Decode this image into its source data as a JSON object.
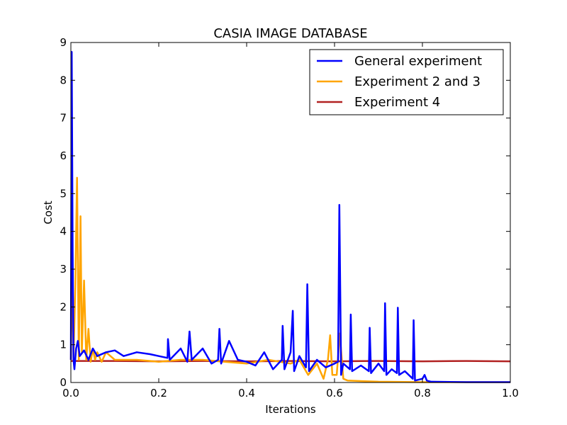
{
  "chart_data": {
    "type": "line",
    "title": "CASIA IMAGE DATABASE",
    "xlabel": "Iterations",
    "ylabel": "Cost",
    "xlim": [
      0,
      1.0
    ],
    "ylim": [
      0,
      9
    ],
    "xticks": [
      "0.0",
      "0.2",
      "0.4",
      "0.6",
      "0.8",
      "1.0"
    ],
    "xtick_values": [
      0,
      0.2,
      0.4,
      0.6,
      0.8,
      1.0
    ],
    "yticks": [
      "0",
      "1",
      "2",
      "3",
      "4",
      "5",
      "6",
      "7",
      "8",
      "9"
    ],
    "ytick_values": [
      0,
      1,
      2,
      3,
      4,
      5,
      6,
      7,
      8,
      9
    ],
    "grid": false,
    "legend_position": "top-right",
    "series": [
      {
        "name": "General experiment",
        "color": "#0000ff",
        "x": [
          0,
          0.002,
          0.004,
          0.006,
          0.008,
          0.012,
          0.016,
          0.02,
          0.03,
          0.04,
          0.05,
          0.06,
          0.08,
          0.1,
          0.12,
          0.15,
          0.18,
          0.2,
          0.22,
          0.221,
          0.225,
          0.25,
          0.265,
          0.27,
          0.275,
          0.3,
          0.32,
          0.335,
          0.338,
          0.342,
          0.36,
          0.38,
          0.4,
          0.42,
          0.44,
          0.46,
          0.48,
          0.482,
          0.486,
          0.5,
          0.505,
          0.508,
          0.52,
          0.535,
          0.538,
          0.542,
          0.56,
          0.58,
          0.6,
          0.608,
          0.611,
          0.615,
          0.62,
          0.635,
          0.637,
          0.64,
          0.66,
          0.678,
          0.68,
          0.683,
          0.7,
          0.713,
          0.715,
          0.718,
          0.73,
          0.742,
          0.744,
          0.747,
          0.76,
          0.778,
          0.78,
          0.783,
          0.8,
          0.805,
          0.81,
          0.82,
          0.9,
          1.0
        ],
        "y": [
          0.6,
          8.75,
          3.5,
          0.6,
          0.35,
          0.9,
          1.1,
          0.7,
          0.85,
          0.6,
          0.9,
          0.7,
          0.8,
          0.85,
          0.7,
          0.8,
          0.75,
          0.7,
          0.65,
          1.15,
          0.6,
          0.9,
          0.55,
          1.35,
          0.6,
          0.9,
          0.5,
          0.6,
          1.42,
          0.5,
          1.1,
          0.6,
          0.55,
          0.45,
          0.8,
          0.35,
          0.6,
          1.5,
          0.35,
          0.8,
          1.9,
          0.3,
          0.7,
          0.4,
          2.6,
          0.3,
          0.6,
          0.4,
          0.5,
          0.55,
          4.7,
          0.2,
          0.5,
          0.35,
          1.8,
          0.3,
          0.45,
          0.3,
          1.45,
          0.25,
          0.5,
          0.3,
          2.1,
          0.2,
          0.35,
          0.25,
          1.98,
          0.2,
          0.3,
          0.1,
          1.65,
          0.05,
          0.1,
          0.2,
          0.05,
          0.02,
          0.01,
          0.01
        ]
      },
      {
        "name": "Experiment 2 and 3",
        "color": "#ffa500",
        "x": [
          0,
          0.003,
          0.006,
          0.01,
          0.014,
          0.018,
          0.022,
          0.025,
          0.03,
          0.035,
          0.04,
          0.045,
          0.05,
          0.055,
          0.06,
          0.07,
          0.08,
          0.1,
          0.15,
          0.2,
          0.25,
          0.3,
          0.35,
          0.4,
          0.45,
          0.5,
          0.52,
          0.54,
          0.56,
          0.575,
          0.585,
          0.59,
          0.595,
          0.605,
          0.612,
          0.62,
          0.63,
          0.7,
          0.8,
          0.9,
          1.0
        ],
        "y": [
          0.6,
          3.15,
          0.6,
          2.5,
          5.42,
          0.6,
          4.4,
          0.8,
          2.7,
          0.6,
          1.42,
          0.55,
          0.9,
          0.6,
          0.8,
          0.55,
          0.8,
          0.6,
          0.6,
          0.55,
          0.6,
          0.6,
          0.55,
          0.5,
          0.6,
          0.5,
          0.6,
          0.2,
          0.5,
          0.1,
          0.6,
          1.25,
          0.2,
          0.2,
          1.3,
          0.1,
          0.05,
          0.02,
          0.01,
          0.01,
          0.01
        ]
      },
      {
        "name": "Experiment 4",
        "color": "#b22222",
        "x": [
          0,
          0.1,
          0.2,
          0.3,
          0.4,
          0.5,
          0.6,
          0.7,
          0.8,
          0.9,
          1.0
        ],
        "y": [
          0.57,
          0.57,
          0.56,
          0.57,
          0.56,
          0.57,
          0.56,
          0.57,
          0.56,
          0.57,
          0.56
        ]
      }
    ]
  }
}
